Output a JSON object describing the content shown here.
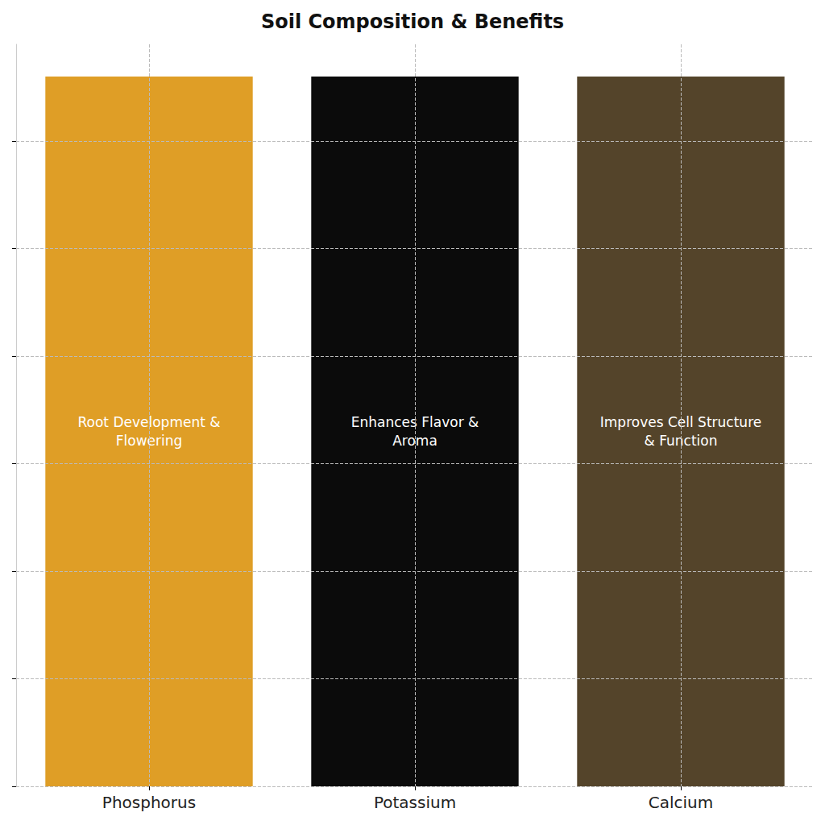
{
  "chart_data": {
    "type": "bar",
    "title": "Soil Composition & Benefits",
    "categories": [
      "Phosphorus",
      "Potassium",
      "Calcium"
    ],
    "values": [
      6.6,
      6.6,
      6.6
    ],
    "colors": [
      "#df9e26",
      "#0b0b0b",
      "#54442a"
    ],
    "annotations": [
      "Root Development &\nFlowering",
      "Enhances Flavor &\nAroma",
      "Improves Cell Structure\n& Function"
    ],
    "ylim": [
      0,
      6.9
    ],
    "yticks": [
      0,
      1,
      2,
      3,
      4,
      5,
      6
    ],
    "grid": true,
    "tick_labels": "x"
  }
}
